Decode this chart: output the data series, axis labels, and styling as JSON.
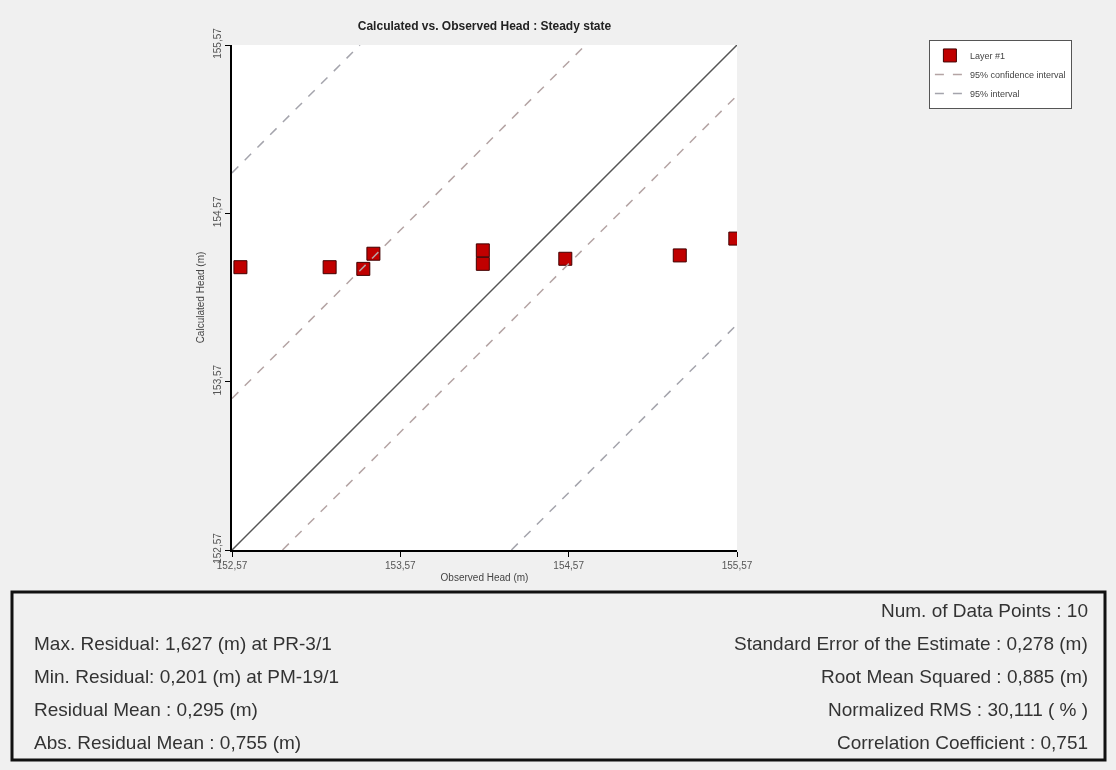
{
  "chart_data": {
    "type": "scatter",
    "title": "Calculated vs. Observed Head : Steady state",
    "xlabel": "Observed Head (m)",
    "ylabel": "Calculated Head (m)",
    "x": [
      152.62,
      153.15,
      153.35,
      153.41,
      154.06,
      154.06,
      154.55,
      155.23,
      155.56
    ],
    "series": [
      {
        "name": "Layer #1",
        "color": "#c00000",
        "marker": "square",
        "values": [
          154.25,
          154.25,
          154.24,
          154.33,
          154.35,
          154.27,
          154.3,
          154.32,
          154.42
        ]
      },
      {
        "type": "line",
        "color": "#555555",
        "line_style": "solid",
        "x": [
          152.57,
          155.57
        ],
        "values": [
          152.57,
          155.57
        ]
      },
      {
        "type": "line",
        "name": "95% confidence interval",
        "color": "#b4a4a4",
        "line_style": "dashed",
        "x": [
          152.57,
          154.67,
          null,
          152.87,
          155.57
        ],
        "values": [
          153.47,
          155.57,
          null,
          152.57,
          155.27
        ]
      },
      {
        "type": "line",
        "name": "95% interval",
        "color": "#a4a4ac",
        "line_style": "dashed",
        "x": [
          152.57,
          153.33,
          null,
          154.23,
          155.57
        ],
        "values": [
          154.81,
          155.57,
          null,
          152.57,
          153.91
        ]
      }
    ],
    "xlim": [
      152.57,
      155.57
    ],
    "ylim": [
      152.57,
      155.57
    ],
    "xticks": [
      {
        "value": 152.57,
        "label": "152,57"
      },
      {
        "value": 153.57,
        "label": "153,57"
      },
      {
        "value": 154.57,
        "label": "154,57"
      },
      {
        "value": 155.57,
        "label": "155,57"
      }
    ],
    "yticks": [
      {
        "value": 152.57,
        "label": "152,57"
      },
      {
        "value": 153.57,
        "label": "153,57"
      },
      {
        "value": 154.57,
        "label": "154,57"
      },
      {
        "value": 155.57,
        "label": "155,57"
      }
    ],
    "grid": false,
    "legend": "top right",
    "annotations": [
      "Num. of Data Points : 10",
      "Max. Residual: 1,627 (m) at PR-3/1",
      "Standard Error of the Estimate : 0,278 (m)",
      "Min. Residual: 0,201 (m) at PM-19/1",
      "Root Mean Squared : 0,885 (m)",
      "Residual Mean : 0,295 (m)",
      "Normalized RMS : 30,111 ( % )",
      "Abs. Residual Mean : 0,755 (m)",
      "Correlation Coefficient : 0,751"
    ]
  }
}
